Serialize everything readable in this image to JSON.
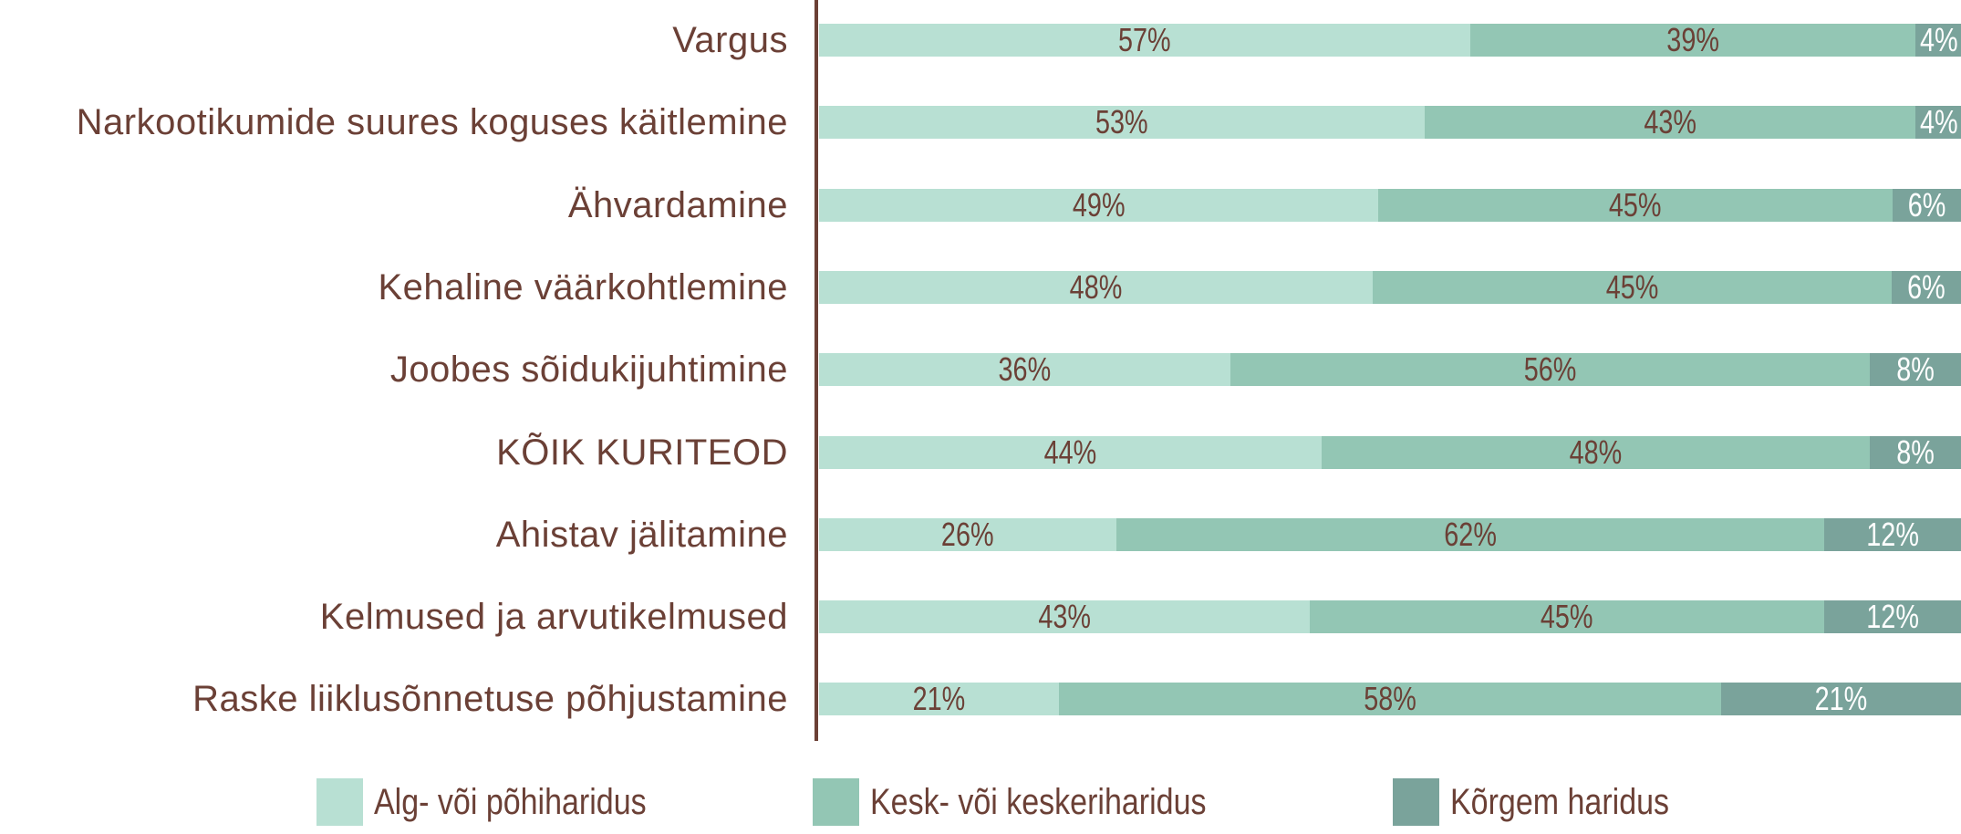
{
  "chart_data": {
    "type": "bar",
    "stacked": true,
    "orientation": "horizontal",
    "categories": [
      "Vargus",
      "Narkootikumide suures koguses käitlemine",
      "Ähvardamine",
      "Kehaline väärkohtlemine",
      "Joobes sõidukijuhtimine",
      "KÕIK KURITEOD",
      "Ahistav jälitamine",
      "Kelmused ja arvutikelmused",
      "Raske liiklusõnnetuse põhjustamine"
    ],
    "series": [
      {
        "name": "Alg- või põhiharidus",
        "color": "#b8e0d3",
        "values": [
          57,
          53,
          49,
          48,
          36,
          44,
          26,
          43,
          21
        ]
      },
      {
        "name": "Kesk- või keskeriharidus",
        "color": "#93c6b4",
        "values": [
          39,
          43,
          45,
          45,
          56,
          48,
          62,
          45,
          58
        ]
      },
      {
        "name": "Kõrgem haridus",
        "color": "#7aa39b",
        "values": [
          4,
          4,
          6,
          6,
          8,
          8,
          12,
          12,
          21
        ]
      }
    ],
    "value_suffix": "%",
    "xlim": [
      0,
      100
    ],
    "legend_position": "bottom",
    "grid": false
  }
}
